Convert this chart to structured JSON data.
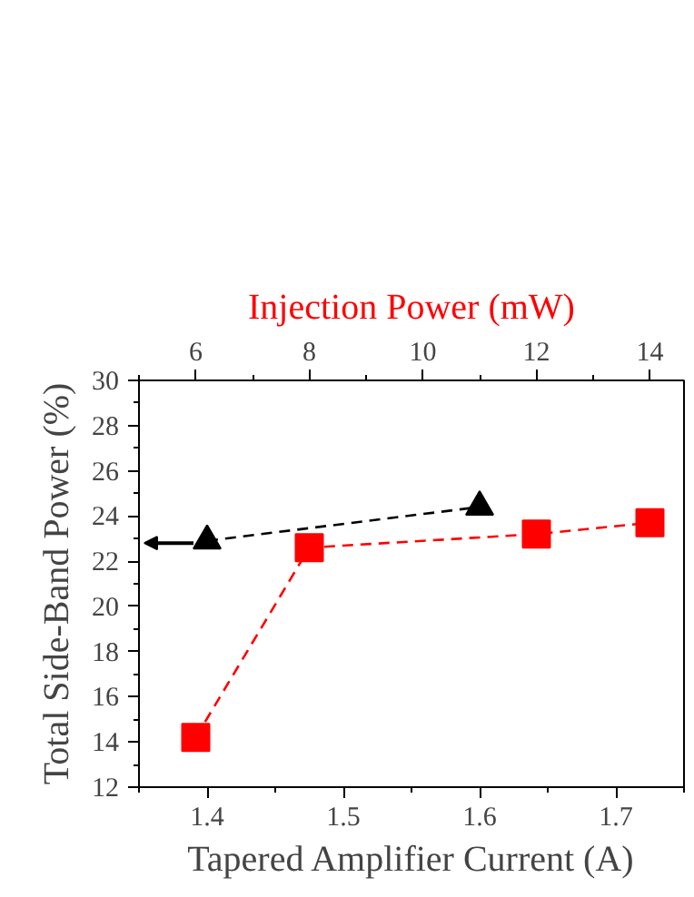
{
  "chart_data": {
    "type": "line",
    "xlabel": "Tapered Amplifier Current (A)",
    "x2label": "Injection Power (mW)",
    "ylabel": "Total Side-Band Power (%)",
    "xlim": [
      1.35,
      1.75
    ],
    "xticks": [
      1.4,
      1.5,
      1.6,
      1.7
    ],
    "x2lim": [
      5,
      14.6
    ],
    "x2ticks": [
      6,
      8,
      10,
      12,
      14
    ],
    "ylim": [
      12,
      30
    ],
    "yticks": [
      12,
      14,
      16,
      18,
      20,
      22,
      24,
      26,
      28,
      30
    ],
    "series": [
      {
        "color": "#000000",
        "x": [
          1.4,
          1.6
        ],
        "values": [
          22.9,
          24.4
        ],
        "marker": "triangle",
        "line_style": "dashed"
      },
      {
        "color": "#ff0000",
        "axis": "x2",
        "x": [
          6,
          8,
          12,
          14
        ],
        "values": [
          14.2,
          22.6,
          23.2,
          23.7
        ],
        "marker": "square",
        "line_style": "dashed"
      }
    ],
    "grid": false
  }
}
